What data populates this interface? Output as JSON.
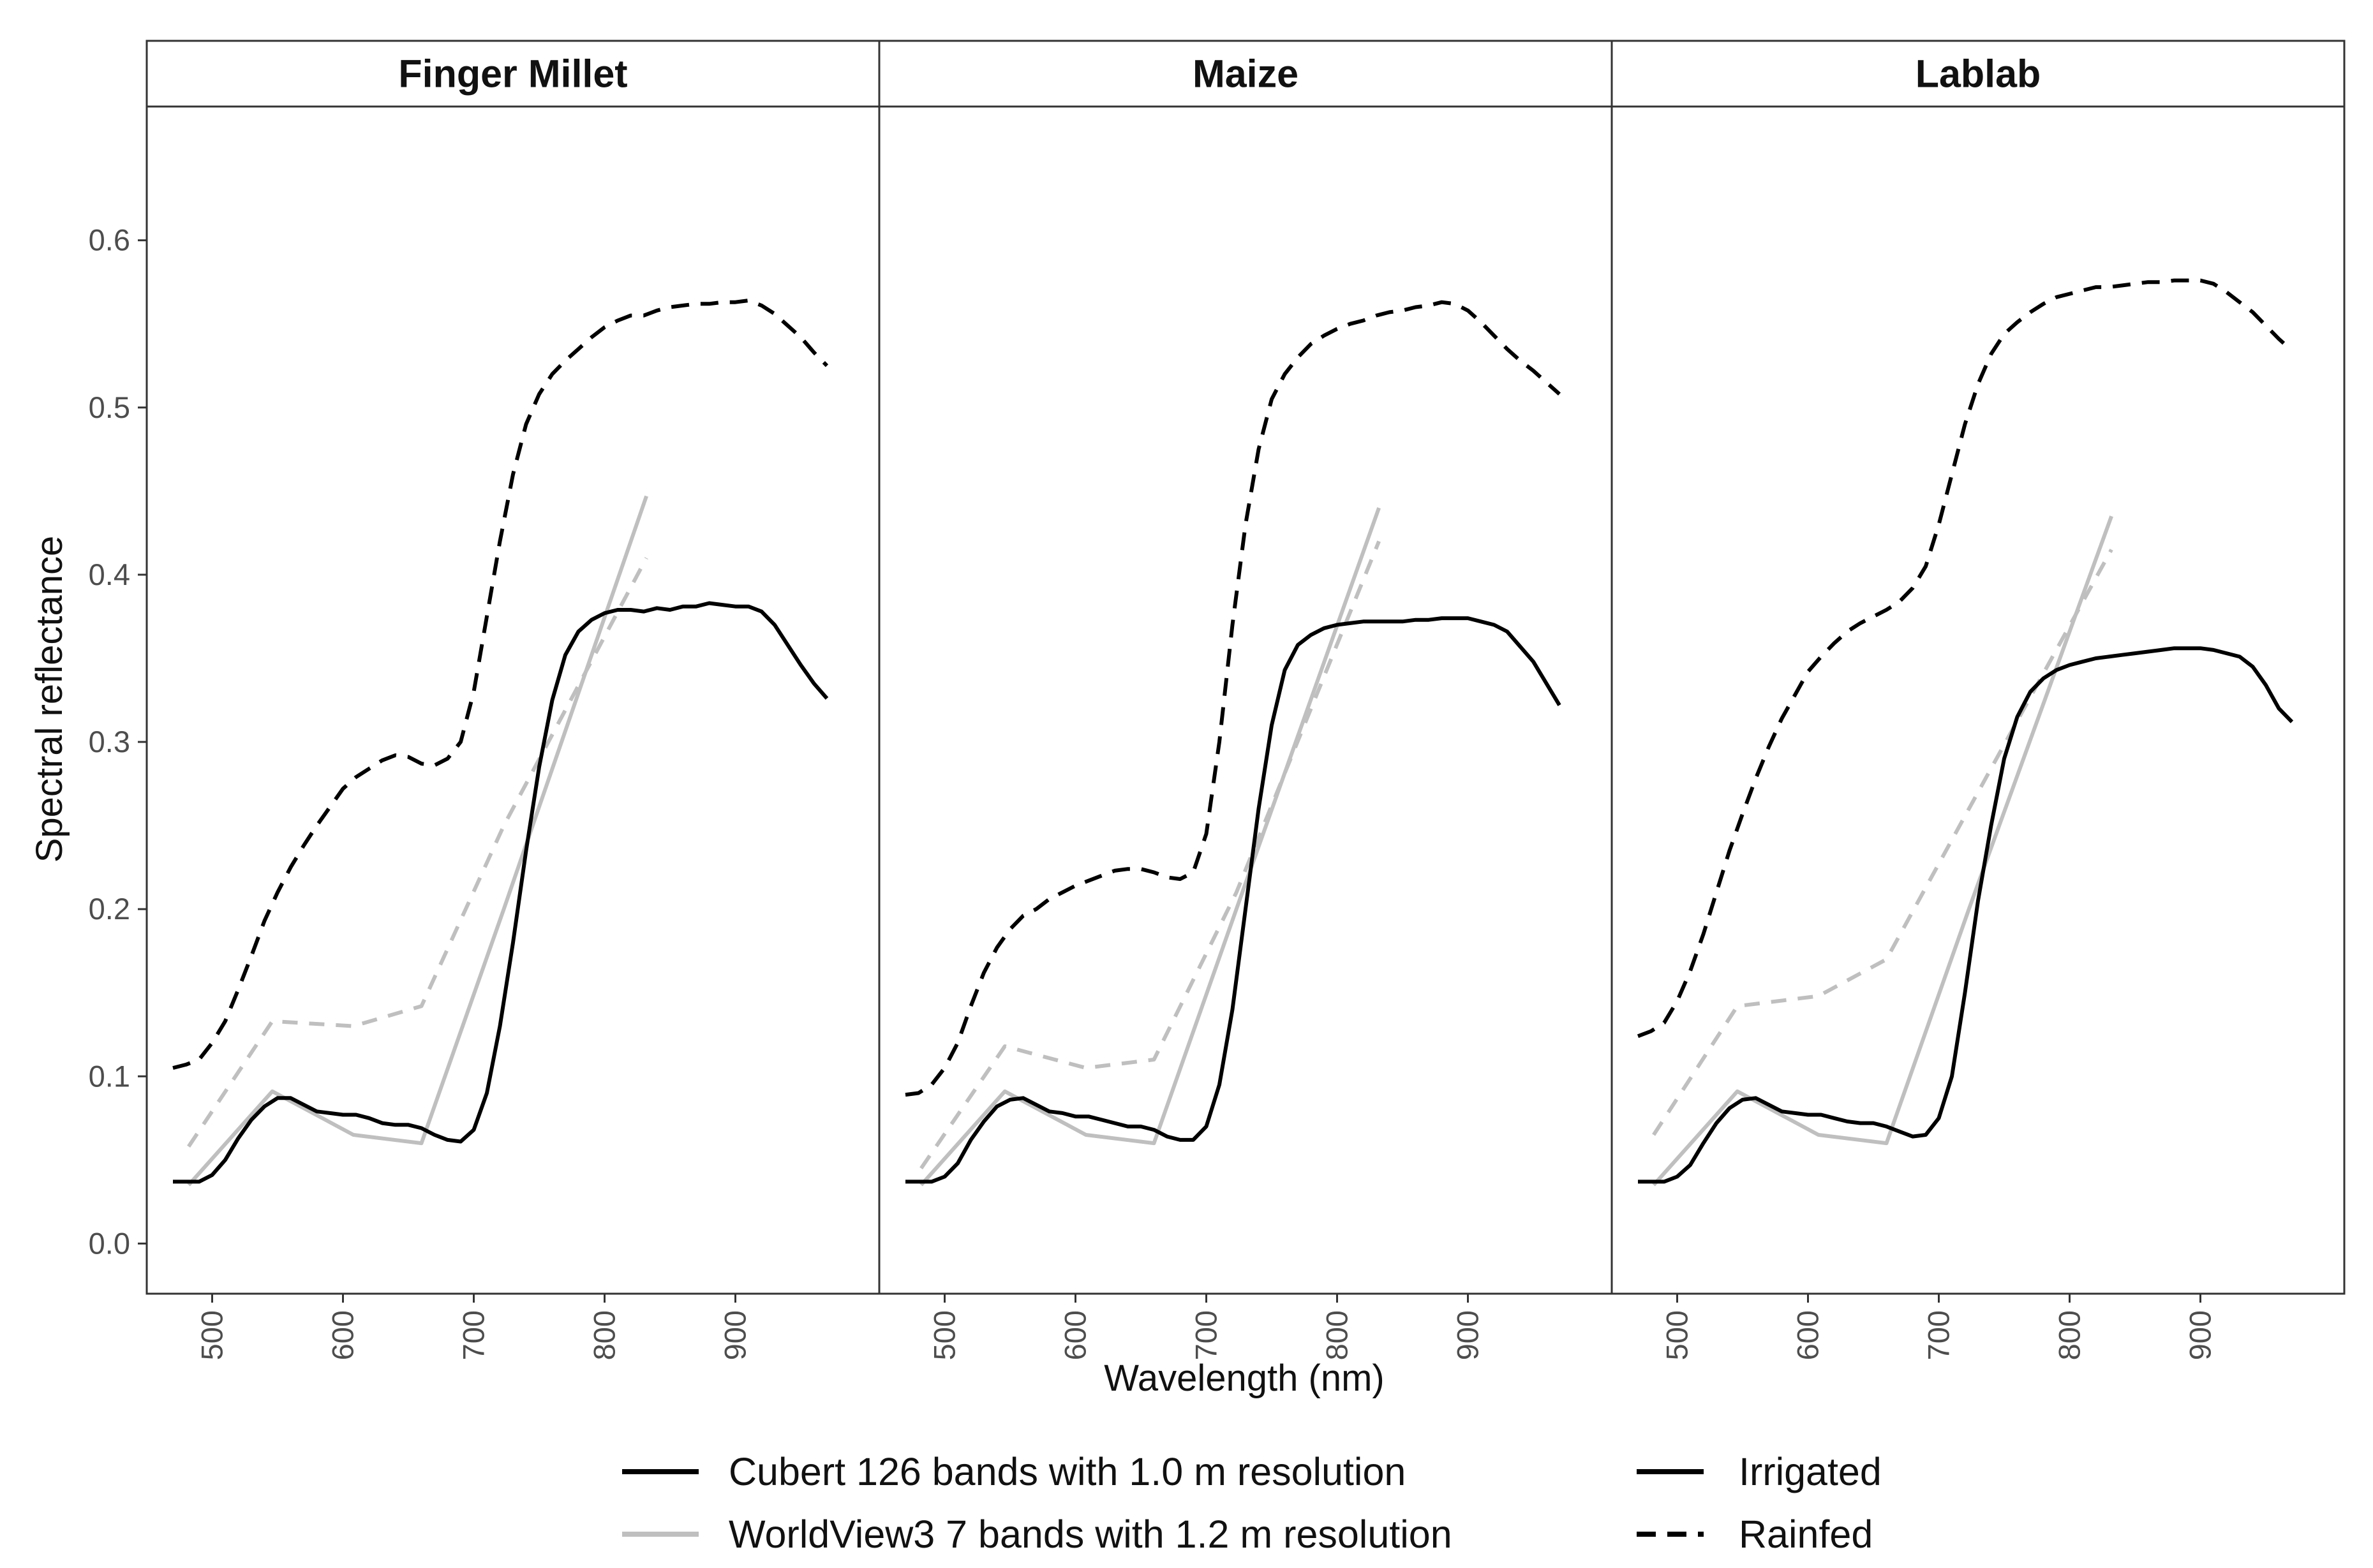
{
  "chart_data": {
    "type": "line",
    "figure_layout": "three-facet line plot with shared y axis",
    "xlabel": "Wavelength (nm)",
    "ylabel": "Spectral reflectance",
    "xlim": [
      450,
      1010
    ],
    "ylim": [
      -0.03,
      0.68
    ],
    "xticks": [
      "500",
      "600",
      "700",
      "800",
      "900"
    ],
    "yticks": [
      "0.0",
      "0.1",
      "0.2",
      "0.3",
      "0.4",
      "0.5",
      "0.6"
    ],
    "grid": false,
    "colors": {
      "cubert": "#000000",
      "worldview": "#bfbfbf",
      "frame": "#333333"
    },
    "legend": {
      "placement": "bottom",
      "sensor": [
        {
          "label": "Cubert 126 bands with 1.0 m resolution",
          "color": "#000000"
        },
        {
          "label": "WorldView3 7 bands with 1.2 m resolution",
          "color": "#bfbfbf"
        }
      ],
      "treatment": [
        {
          "label": "Irrigated",
          "dash": "solid"
        },
        {
          "label": "Rainfed",
          "dash": "dashed"
        }
      ]
    },
    "panels": [
      {
        "title": "Finger Millet",
        "series": [
          {
            "sensor": "Cubert",
            "treatment": "Irrigated",
            "x": [
              470,
              480,
              490,
              500,
              510,
              520,
              530,
              540,
              550,
              560,
              570,
              580,
              590,
              600,
              610,
              620,
              630,
              640,
              650,
              660,
              670,
              680,
              690,
              700,
              710,
              720,
              730,
              740,
              750,
              760,
              770,
              780,
              790,
              800,
              810,
              820,
              830,
              840,
              850,
              860,
              870,
              880,
              890,
              900,
              910,
              920,
              930,
              940,
              950,
              960,
              970
            ],
            "y": [
              0.037,
              0.037,
              0.037,
              0.041,
              0.05,
              0.063,
              0.074,
              0.082,
              0.087,
              0.087,
              0.083,
              0.079,
              0.078,
              0.077,
              0.077,
              0.075,
              0.072,
              0.071,
              0.071,
              0.069,
              0.065,
              0.062,
              0.061,
              0.068,
              0.09,
              0.13,
              0.18,
              0.235,
              0.285,
              0.325,
              0.352,
              0.366,
              0.373,
              0.377,
              0.379,
              0.379,
              0.378,
              0.38,
              0.379,
              0.381,
              0.381,
              0.383,
              0.382,
              0.381,
              0.381,
              0.378,
              0.37,
              0.358,
              0.346,
              0.335,
              0.326
            ]
          },
          {
            "sensor": "Cubert",
            "treatment": "Rainfed",
            "x": [
              470,
              480,
              490,
              500,
              510,
              520,
              530,
              540,
              550,
              560,
              570,
              580,
              590,
              600,
              610,
              620,
              630,
              640,
              650,
              660,
              670,
              680,
              690,
              700,
              710,
              720,
              730,
              740,
              750,
              760,
              770,
              780,
              790,
              800,
              810,
              820,
              830,
              840,
              850,
              860,
              870,
              880,
              890,
              900,
              910,
              920,
              930,
              940,
              950,
              960,
              970
            ],
            "y": [
              0.105,
              0.107,
              0.11,
              0.12,
              0.133,
              0.152,
              0.172,
              0.193,
              0.21,
              0.225,
              0.238,
              0.25,
              0.261,
              0.272,
              0.279,
              0.284,
              0.289,
              0.292,
              0.291,
              0.287,
              0.286,
              0.29,
              0.3,
              0.33,
              0.375,
              0.42,
              0.46,
              0.49,
              0.508,
              0.52,
              0.528,
              0.535,
              0.542,
              0.548,
              0.552,
              0.555,
              0.555,
              0.558,
              0.56,
              0.561,
              0.562,
              0.562,
              0.563,
              0.563,
              0.564,
              0.561,
              0.556,
              0.549,
              0.542,
              0.533,
              0.525
            ]
          },
          {
            "sensor": "WorldView3",
            "treatment": "Irrigated",
            "x": [
              482,
              546,
              608,
              660,
              723,
              832
            ],
            "y": [
              0.035,
              0.091,
              0.065,
              0.06,
              0.2,
              0.447
            ]
          },
          {
            "sensor": "WorldView3",
            "treatment": "Rainfed",
            "x": [
              482,
              546,
              608,
              660,
              723,
              832
            ],
            "y": [
              0.058,
              0.133,
              0.13,
              0.142,
              0.25,
              0.41
            ]
          }
        ]
      },
      {
        "title": "Maize",
        "series": [
          {
            "sensor": "Cubert",
            "treatment": "Irrigated",
            "x": [
              470,
              480,
              490,
              500,
              510,
              520,
              530,
              540,
              550,
              560,
              570,
              580,
              590,
              600,
              610,
              620,
              630,
              640,
              650,
              660,
              670,
              680,
              690,
              700,
              710,
              720,
              730,
              740,
              750,
              760,
              770,
              780,
              790,
              800,
              810,
              820,
              830,
              840,
              850,
              860,
              870,
              880,
              890,
              900,
              910,
              920,
              930,
              940,
              950,
              960,
              970
            ],
            "y": [
              0.037,
              0.037,
              0.037,
              0.04,
              0.048,
              0.062,
              0.073,
              0.082,
              0.086,
              0.087,
              0.083,
              0.079,
              0.078,
              0.076,
              0.076,
              0.074,
              0.072,
              0.07,
              0.07,
              0.068,
              0.064,
              0.062,
              0.062,
              0.07,
              0.095,
              0.14,
              0.2,
              0.26,
              0.31,
              0.343,
              0.358,
              0.364,
              0.368,
              0.37,
              0.371,
              0.372,
              0.372,
              0.372,
              0.372,
              0.373,
              0.373,
              0.374,
              0.374,
              0.374,
              0.372,
              0.37,
              0.366,
              0.357,
              0.348,
              0.335,
              0.322
            ]
          },
          {
            "sensor": "Cubert",
            "treatment": "Rainfed",
            "x": [
              470,
              480,
              490,
              500,
              510,
              520,
              530,
              540,
              550,
              560,
              570,
              580,
              590,
              600,
              610,
              620,
              630,
              640,
              650,
              660,
              670,
              680,
              690,
              700,
              710,
              720,
              730,
              740,
              750,
              760,
              770,
              780,
              790,
              800,
              810,
              820,
              830,
              840,
              850,
              860,
              870,
              880,
              890,
              900,
              910,
              920,
              930,
              940,
              950,
              960,
              970
            ],
            "y": [
              0.089,
              0.09,
              0.095,
              0.105,
              0.12,
              0.142,
              0.162,
              0.177,
              0.188,
              0.196,
              0.2,
              0.206,
              0.21,
              0.214,
              0.217,
              0.22,
              0.223,
              0.224,
              0.224,
              0.222,
              0.219,
              0.218,
              0.222,
              0.245,
              0.3,
              0.37,
              0.43,
              0.475,
              0.505,
              0.52,
              0.53,
              0.538,
              0.543,
              0.547,
              0.55,
              0.552,
              0.555,
              0.557,
              0.558,
              0.56,
              0.561,
              0.563,
              0.562,
              0.558,
              0.551,
              0.543,
              0.535,
              0.528,
              0.522,
              0.515,
              0.508
            ]
          },
          {
            "sensor": "WorldView3",
            "treatment": "Irrigated",
            "x": [
              482,
              546,
              608,
              660,
              723,
              832
            ],
            "y": [
              0.035,
              0.091,
              0.065,
              0.06,
              0.2,
              0.44
            ]
          },
          {
            "sensor": "WorldView3",
            "treatment": "Rainfed",
            "x": [
              482,
              546,
              608,
              660,
              723,
              832
            ],
            "y": [
              0.045,
              0.118,
              0.105,
              0.11,
              0.21,
              0.42
            ]
          }
        ]
      },
      {
        "title": "Lablab",
        "series": [
          {
            "sensor": "Cubert",
            "treatment": "Irrigated",
            "x": [
              470,
              480,
              490,
              500,
              510,
              520,
              530,
              540,
              550,
              560,
              570,
              580,
              590,
              600,
              610,
              620,
              630,
              640,
              650,
              660,
              670,
              680,
              690,
              700,
              710,
              720,
              730,
              740,
              750,
              760,
              770,
              780,
              790,
              800,
              810,
              820,
              830,
              840,
              850,
              860,
              870,
              880,
              890,
              900,
              910,
              920,
              930,
              940,
              950,
              960,
              970
            ],
            "y": [
              0.037,
              0.037,
              0.037,
              0.04,
              0.047,
              0.06,
              0.072,
              0.081,
              0.086,
              0.087,
              0.083,
              0.079,
              0.078,
              0.077,
              0.077,
              0.075,
              0.073,
              0.072,
              0.072,
              0.07,
              0.067,
              0.064,
              0.065,
              0.075,
              0.1,
              0.15,
              0.205,
              0.25,
              0.29,
              0.315,
              0.33,
              0.338,
              0.343,
              0.346,
              0.348,
              0.35,
              0.351,
              0.352,
              0.353,
              0.354,
              0.355,
              0.356,
              0.356,
              0.356,
              0.355,
              0.353,
              0.351,
              0.345,
              0.334,
              0.32,
              0.312
            ]
          },
          {
            "sensor": "Cubert",
            "treatment": "Rainfed",
            "x": [
              470,
              480,
              490,
              500,
              510,
              520,
              530,
              540,
              550,
              560,
              570,
              580,
              590,
              600,
              610,
              620,
              630,
              640,
              650,
              660,
              670,
              680,
              690,
              700,
              710,
              720,
              730,
              740,
              750,
              760,
              770,
              780,
              790,
              800,
              810,
              820,
              830,
              840,
              850,
              860,
              870,
              880,
              890,
              900,
              910,
              920,
              930,
              940,
              950,
              960,
              970
            ],
            "y": [
              0.124,
              0.127,
              0.132,
              0.145,
              0.163,
              0.185,
              0.21,
              0.235,
              0.257,
              0.278,
              0.297,
              0.314,
              0.328,
              0.342,
              0.351,
              0.359,
              0.366,
              0.371,
              0.375,
              0.379,
              0.384,
              0.392,
              0.405,
              0.43,
              0.46,
              0.49,
              0.514,
              0.532,
              0.544,
              0.551,
              0.557,
              0.562,
              0.566,
              0.568,
              0.57,
              0.572,
              0.572,
              0.573,
              0.574,
              0.575,
              0.575,
              0.576,
              0.576,
              0.576,
              0.574,
              0.569,
              0.563,
              0.557,
              0.549,
              0.541,
              0.534
            ]
          },
          {
            "sensor": "WorldView3",
            "treatment": "Irrigated",
            "x": [
              482,
              546,
              608,
              660,
              723,
              832
            ],
            "y": [
              0.035,
              0.091,
              0.065,
              0.06,
              0.2,
              0.435
            ]
          },
          {
            "sensor": "WorldView3",
            "treatment": "Rainfed",
            "x": [
              482,
              546,
              608,
              660,
              723,
              832
            ],
            "y": [
              0.065,
              0.142,
              0.148,
              0.17,
              0.26,
              0.415
            ]
          }
        ]
      }
    ]
  }
}
